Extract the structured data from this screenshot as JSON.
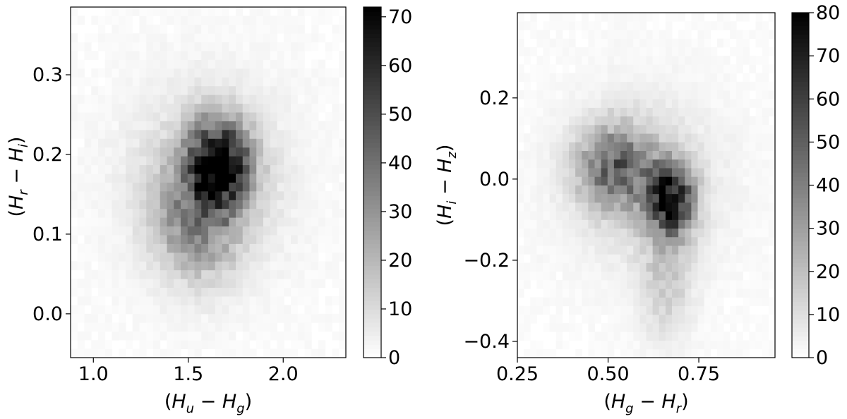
{
  "chart_data": [
    {
      "type": "heatmap",
      "colormap": "Greys",
      "xlabel_base": [
        "H",
        "u",
        "H",
        "g"
      ],
      "ylabel_base": [
        "H",
        "r",
        "H",
        "i"
      ],
      "xlim": [
        0.88,
        2.33
      ],
      "ylim": [
        -0.055,
        0.385
      ],
      "xticks": [
        {
          "value": 1.0,
          "label": "1.0"
        },
        {
          "value": 1.5,
          "label": "1.5"
        },
        {
          "value": 2.0,
          "label": "2.0"
        }
      ],
      "yticks": [
        {
          "value": 0.0,
          "label": "0.0"
        },
        {
          "value": 0.1,
          "label": "0.1"
        },
        {
          "value": 0.2,
          "label": "0.2"
        },
        {
          "value": 0.3,
          "label": "0.3"
        }
      ],
      "colorbar": {
        "range": [
          0,
          72
        ],
        "ticks": [
          {
            "value": 0,
            "label": "0"
          },
          {
            "value": 10,
            "label": "10"
          },
          {
            "value": 20,
            "label": "20"
          },
          {
            "value": 30,
            "label": "30"
          },
          {
            "value": 40,
            "label": "40"
          },
          {
            "value": 50,
            "label": "50"
          },
          {
            "value": 60,
            "label": "60"
          },
          {
            "value": 70,
            "label": "70"
          }
        ]
      },
      "bins": {
        "nx": 40,
        "ny": 40
      },
      "density_components": [
        {
          "x": 1.66,
          "y": 0.19,
          "sx": 0.11,
          "sy": 0.036,
          "amp": 68
        },
        {
          "x": 1.55,
          "y": 0.12,
          "sx": 0.15,
          "sy": 0.05,
          "amp": 28
        },
        {
          "x": 1.6,
          "y": 0.17,
          "sx": 0.28,
          "sy": 0.08,
          "amp": 12
        }
      ]
    },
    {
      "type": "heatmap",
      "colormap": "Greys",
      "xlabel_base": [
        "H",
        "g",
        "H",
        "r"
      ],
      "ylabel_base": [
        "H",
        "i",
        "H",
        "z"
      ],
      "xlim": [
        0.25,
        0.96
      ],
      "ylim": [
        -0.44,
        0.41
      ],
      "xticks": [
        {
          "value": 0.25,
          "label": "0.25"
        },
        {
          "value": 0.5,
          "label": "0.50"
        },
        {
          "value": 0.75,
          "label": "0.75"
        }
      ],
      "yticks": [
        {
          "value": -0.4,
          "label": "−0.4"
        },
        {
          "value": -0.2,
          "label": "−0.2"
        },
        {
          "value": 0.0,
          "label": "0.0"
        },
        {
          "value": 0.2,
          "label": "0.2"
        }
      ],
      "colorbar": {
        "range": [
          0,
          80
        ],
        "ticks": [
          {
            "value": 0,
            "label": "0"
          },
          {
            "value": 10,
            "label": "10"
          },
          {
            "value": 20,
            "label": "20"
          },
          {
            "value": 30,
            "label": "30"
          },
          {
            "value": 40,
            "label": "40"
          },
          {
            "value": 50,
            "label": "50"
          },
          {
            "value": 60,
            "label": "60"
          },
          {
            "value": 70,
            "label": "70"
          },
          {
            "value": 80,
            "label": "80"
          }
        ]
      },
      "bins": {
        "nx": 40,
        "ny": 40
      },
      "density_components": [
        {
          "x": 0.67,
          "y": -0.05,
          "sx": 0.045,
          "sy": 0.06,
          "amp": 72
        },
        {
          "x": 0.52,
          "y": 0.03,
          "sx": 0.07,
          "sy": 0.07,
          "amp": 42
        },
        {
          "x": 0.66,
          "y": -0.25,
          "sx": 0.05,
          "sy": 0.1,
          "amp": 14
        },
        {
          "x": 0.6,
          "y": 0.0,
          "sx": 0.15,
          "sy": 0.15,
          "amp": 10
        }
      ]
    }
  ]
}
